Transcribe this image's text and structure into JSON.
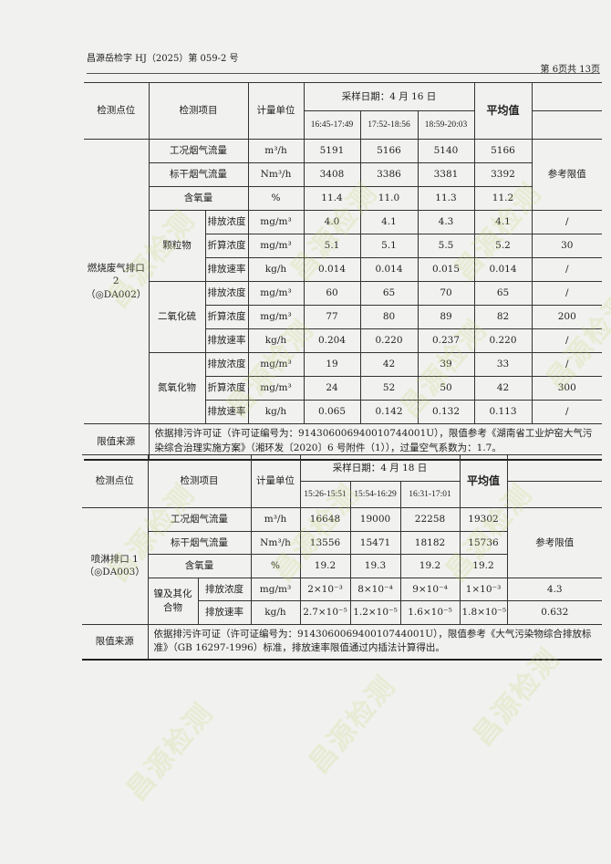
{
  "header": {
    "doc_no": "昌源岳检字 HJ（2025）第 059-2 号",
    "page": "第 6页共 13页"
  },
  "watermark": "昌源检测",
  "table1": {
    "h_point": "检测点位",
    "h_item": "检测项目",
    "h_unit": "计量单位",
    "h_date": "采样日期：4 月 16 日",
    "h_avg": "平均值",
    "h_ref": "参考限值",
    "times": [
      "16:45-17:49",
      "17:52-18:56",
      "18:59-20:03"
    ],
    "point": "燃烧废气排口 2（◎DA002）",
    "rows": [
      {
        "group": "",
        "item": "工况烟气流量",
        "unit": "m³/h",
        "v": [
          "5191",
          "5166",
          "5140"
        ],
        "avg": "5166"
      },
      {
        "group": "",
        "item": "标干烟气流量",
        "unit": "Nm³/h",
        "v": [
          "3408",
          "3386",
          "3381"
        ],
        "avg": "3392"
      },
      {
        "group": "",
        "item": "含氧量",
        "unit": "%",
        "v": [
          "11.4",
          "11.0",
          "11.3"
        ],
        "avg": "11.2"
      },
      {
        "group": "颗粒物",
        "item": "排放浓度",
        "unit": "mg/m³",
        "v": [
          "4.0",
          "4.1",
          "4.3"
        ],
        "avg": "4.1",
        "ref": "/"
      },
      {
        "group": "颗粒物",
        "item": "折算浓度",
        "unit": "mg/m³",
        "v": [
          "5.1",
          "5.1",
          "5.5"
        ],
        "avg": "5.2",
        "ref": "30"
      },
      {
        "group": "颗粒物",
        "item": "排放速率",
        "unit": "kg/h",
        "v": [
          "0.014",
          "0.014",
          "0.015"
        ],
        "avg": "0.014",
        "ref": "/"
      },
      {
        "group": "二氧化硫",
        "item": "排放浓度",
        "unit": "mg/m³",
        "v": [
          "60",
          "65",
          "70"
        ],
        "avg": "65",
        "ref": "/"
      },
      {
        "group": "二氧化硫",
        "item": "折算浓度",
        "unit": "mg/m³",
        "v": [
          "77",
          "80",
          "89"
        ],
        "avg": "82",
        "ref": "200"
      },
      {
        "group": "二氧化硫",
        "item": "排放速率",
        "unit": "kg/h",
        "v": [
          "0.204",
          "0.220",
          "0.237"
        ],
        "avg": "0.220",
        "ref": "/"
      },
      {
        "group": "氮氧化物",
        "item": "排放浓度",
        "unit": "mg/m³",
        "v": [
          "19",
          "42",
          "39"
        ],
        "avg": "33",
        "ref": "/"
      },
      {
        "group": "氮氧化物",
        "item": "折算浓度",
        "unit": "mg/m³",
        "v": [
          "24",
          "52",
          "50"
        ],
        "avg": "42",
        "ref": "300"
      },
      {
        "group": "氮氧化物",
        "item": "排放速率",
        "unit": "kg/h",
        "v": [
          "0.065",
          "0.142",
          "0.132"
        ],
        "avg": "0.113",
        "ref": "/"
      }
    ],
    "note_label": "限值来源",
    "note": "依据排污许可证（许可证编号为：91430600694001074400​1U），限值参考《湖南省工业炉窑大气污染综合治理实施方案》（湘环发〔2020〕6 号附件（1）），过量空气系数为：1.7。"
  },
  "table2": {
    "h_point": "检测点位",
    "h_item": "检测项目",
    "h_unit": "计量单位",
    "h_date": "采样日期：4 月 18 日",
    "h_avg": "平均值",
    "h_ref": "参考限值",
    "times": [
      "15:26-15:51",
      "15:54-16:29",
      "16:31-17:01"
    ],
    "point": "喷淋排口 1（◎DA003）",
    "rows": [
      {
        "group": "",
        "item": "工况烟气流量",
        "unit": "m³/h",
        "v": [
          "16648",
          "19000",
          "22258"
        ],
        "avg": "19302"
      },
      {
        "group": "",
        "item": "标干烟气流量",
        "unit": "Nm³/h",
        "v": [
          "13556",
          "15471",
          "18182"
        ],
        "avg": "15736"
      },
      {
        "group": "",
        "item": "含氧量",
        "unit": "%",
        "v": [
          "19.2",
          "19.3",
          "19.2"
        ],
        "avg": "19.2"
      },
      {
        "group": "镍及其化合物",
        "item": "排放浓度",
        "unit": "mg/m³",
        "v": [
          "2×10⁻³",
          "8×10⁻⁴",
          "9×10⁻⁴"
        ],
        "avg": "1×10⁻³",
        "ref": "4.3"
      },
      {
        "group": "镍及其化合物",
        "item": "排放速率",
        "unit": "kg/h",
        "v": [
          "2.7×10⁻⁵",
          "1.2×10⁻⁵",
          "1.6×10⁻⁵"
        ],
        "avg": "1.8×10⁻⁵",
        "ref": "0.632"
      }
    ],
    "note_label": "限值来源",
    "note": "依据排污许可证（许可证编号为：914306006940010744001U），限值参考《大气污染物综合排放标准》（GB 16297-1996）标准，排放速率限值通过内插法计算得出。"
  }
}
